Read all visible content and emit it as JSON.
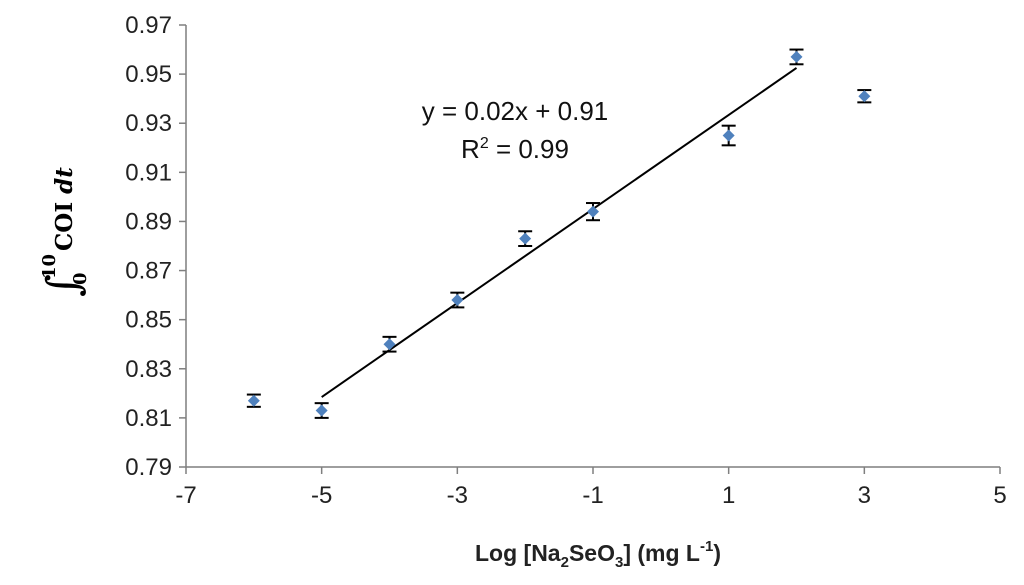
{
  "chart_data": {
    "type": "scatter",
    "xlim": [
      -7,
      5
    ],
    "ylim": [
      0.79,
      0.97
    ],
    "x_ticks": [
      -7,
      -5,
      -3,
      -1,
      1,
      3,
      5
    ],
    "y_ticks": [
      0.79,
      0.81,
      0.83,
      0.85,
      0.87,
      0.89,
      0.91,
      0.93,
      0.95,
      0.97
    ],
    "x_tick_labels": [
      "-7",
      "-5",
      "-3",
      "-1",
      "1",
      "3",
      "5"
    ],
    "y_tick_labels": [
      "0.79",
      "0.81",
      "0.83",
      "0.85",
      "0.87",
      "0.89",
      "0.91",
      "0.93",
      "0.95",
      "0.97"
    ],
    "grid": false,
    "points": [
      {
        "x": -6,
        "y": 0.817,
        "err": 0.0025
      },
      {
        "x": -5,
        "y": 0.813,
        "err": 0.003
      },
      {
        "x": -4,
        "y": 0.84,
        "err": 0.003
      },
      {
        "x": -3,
        "y": 0.858,
        "err": 0.003
      },
      {
        "x": -2,
        "y": 0.883,
        "err": 0.003
      },
      {
        "x": -1,
        "y": 0.894,
        "err": 0.0035
      },
      {
        "x": 1,
        "y": 0.925,
        "err": 0.004
      },
      {
        "x": 2,
        "y": 0.957,
        "err": 0.003
      },
      {
        "x": 3,
        "y": 0.941,
        "err": 0.0025
      }
    ],
    "trendline": {
      "x_start": -5,
      "y_start": 0.8185,
      "x_end": 2,
      "y_end": 0.9525
    },
    "equation": "y = 0.02x + 0.91",
    "r2_prefix": "R",
    "r2_sup": "2",
    "r2_value": " = 0.99",
    "xlabel": {
      "prefix": "Log [Na",
      "sub1": "2",
      "mid": "SeO",
      "sub2": "3",
      "rest": "] (mg L",
      "sup": "-1",
      "end": ")"
    },
    "ylabel": {
      "integral": "∫",
      "upper": "10",
      "lower": "0",
      "text": "COI ",
      "dt": "dt"
    },
    "colors": {
      "point": "#4f81bd",
      "axis": "#7f7f7f",
      "line": "#000000"
    }
  }
}
